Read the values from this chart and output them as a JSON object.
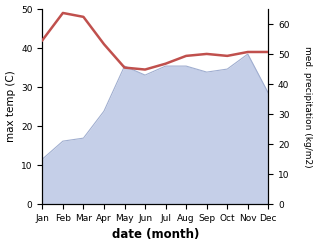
{
  "months": [
    "Jan",
    "Feb",
    "Mar",
    "Apr",
    "May",
    "Jun",
    "Jul",
    "Aug",
    "Sep",
    "Oct",
    "Nov",
    "Dec"
  ],
  "x": [
    0,
    1,
    2,
    3,
    4,
    5,
    6,
    7,
    8,
    9,
    10,
    11
  ],
  "temperature": [
    42,
    49,
    48,
    41,
    35,
    34.5,
    36,
    38,
    38.5,
    38,
    39,
    39
  ],
  "precipitation": [
    15,
    21,
    22,
    31,
    46,
    43,
    46,
    46,
    44,
    45,
    50,
    37
  ],
  "temp_color": "#c0504d",
  "precip_fill_color": "#c5cfe8",
  "precip_line_color": "#a0aed0",
  "xlabel": "date (month)",
  "ylabel_left": "max temp (C)",
  "ylabel_right": "med. precipitation (kg/m2)",
  "ylim_left": [
    0,
    50
  ],
  "ylim_right": [
    0,
    65
  ],
  "yticks_left": [
    0,
    10,
    20,
    30,
    40,
    50
  ],
  "yticks_right": [
    0,
    10,
    20,
    30,
    40,
    50,
    60
  ],
  "figsize": [
    3.18,
    2.47
  ],
  "dpi": 100
}
